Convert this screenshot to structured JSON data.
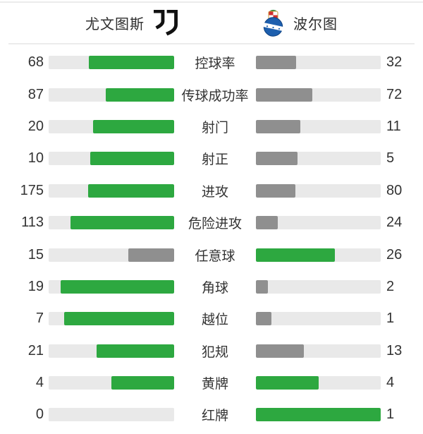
{
  "header": {
    "home_team": "尤文图斯",
    "away_team": "波尔图",
    "home_logo_icon": "juventus-logo",
    "away_logo_icon": "porto-crest"
  },
  "colors": {
    "win_bar": "#2da840",
    "lose_bar": "#8f8f8f",
    "bar_track": "#e9e9e9",
    "text": "#333333",
    "porto_blue": "#1d5fae",
    "juventus_black": "#111111"
  },
  "chart_data": {
    "type": "bar",
    "orientation": "horizontal-paired",
    "title": "",
    "categories": [
      "控球率",
      "传球成功率",
      "射门",
      "射正",
      "进攻",
      "危险进攻",
      "任意球",
      "角球",
      "越位",
      "犯规",
      "黄牌",
      "红牌"
    ],
    "series": [
      {
        "name": "尤文图斯",
        "values": [
          68,
          87,
          20,
          10,
          175,
          113,
          15,
          19,
          7,
          21,
          4,
          0
        ]
      },
      {
        "name": "波尔图",
        "values": [
          32,
          72,
          11,
          5,
          80,
          24,
          26,
          2,
          1,
          13,
          4,
          1
        ]
      }
    ],
    "bar_scale": "each bar filled proportionally to value/(home+away), higher value shown green, lower gray, tie both green"
  }
}
